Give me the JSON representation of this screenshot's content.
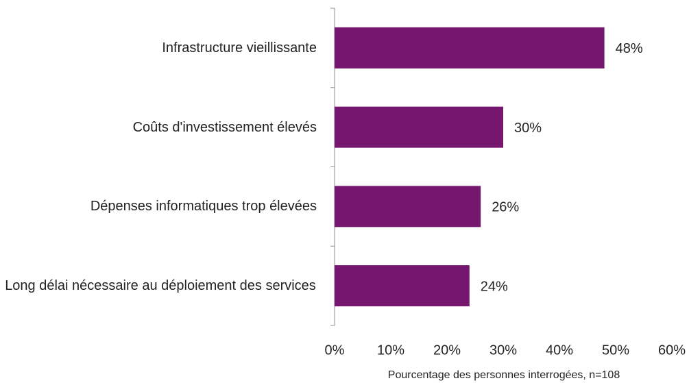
{
  "chart_data": {
    "type": "bar",
    "orientation": "horizontal",
    "categories": [
      "Infrastructure vieillissante",
      "Coûts d'investissement élevés",
      "Dépenses informatiques trop élevées",
      "Long délai nécessaire au déploiement des services"
    ],
    "values": [
      48,
      30,
      26,
      24
    ],
    "value_labels": [
      "48%",
      "30%",
      "26%",
      "24%"
    ],
    "color": "#75166f",
    "xlabel": "Pourcentage des personnes interrogées, n=108",
    "xlim": [
      0,
      60
    ],
    "xticks": [
      {
        "value": 0,
        "label": "0%"
      },
      {
        "value": 10,
        "label": "10%"
      },
      {
        "value": 20,
        "label": "20%"
      },
      {
        "value": 30,
        "label": "30%"
      },
      {
        "value": 40,
        "label": "40%"
      },
      {
        "value": 50,
        "label": "50%"
      },
      {
        "value": 60,
        "label": "60%"
      }
    ],
    "grid": false
  }
}
